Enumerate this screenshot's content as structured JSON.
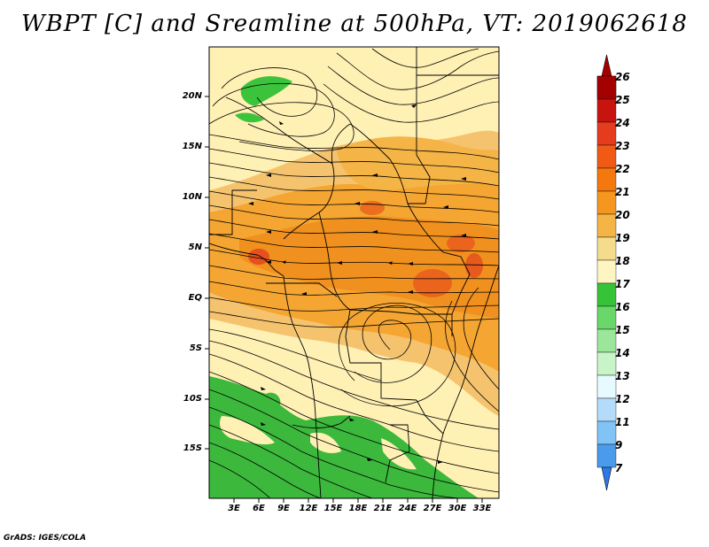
{
  "title": "WBPT [C] and Sreamline at 500hPa, VT: 2019062618",
  "credit": "GrADS: IGES/COLA",
  "map": {
    "lat_labels": [
      "20N",
      "15N",
      "10N",
      "5N",
      "EQ",
      "5S",
      "10S",
      "15S"
    ],
    "lon_labels": [
      "3E",
      "6E",
      "9E",
      "12E",
      "15E",
      "18E",
      "21E",
      "24E",
      "27E",
      "30E",
      "33E"
    ],
    "lat_range": [
      -20,
      24.5
    ],
    "lon_range": [
      0,
      35
    ]
  },
  "legend": {
    "levels": [
      "26",
      "25",
      "24",
      "23",
      "22",
      "21",
      "20",
      "19",
      "18",
      "17",
      "16",
      "15",
      "14",
      "13",
      "12",
      "11",
      "9",
      "7"
    ],
    "colors": [
      "#a50000",
      "#c8140f",
      "#e63c1e",
      "#f05a14",
      "#f5780f",
      "#f5961e",
      "#f5b446",
      "#f5dc8c",
      "#fff5c3",
      "#37c337",
      "#69d769",
      "#9be69b",
      "#c8f5c8",
      "#e6faff",
      "#b4dcfa",
      "#82c3f5",
      "#4b9bec",
      "#2d78e6",
      "#1e5ad2"
    ]
  }
}
